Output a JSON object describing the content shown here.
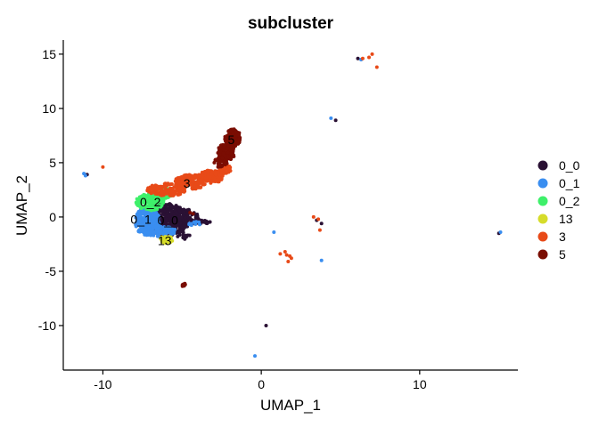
{
  "chart_data": {
    "type": "scatter",
    "title": "subcluster",
    "xlabel": "UMAP_1",
    "ylabel": "UMAP_2",
    "xlim": [
      -12.5,
      16.2
    ],
    "ylim": [
      -14.1,
      16.3
    ],
    "xticks": [
      -10,
      0,
      10
    ],
    "yticks": [
      -10,
      -5,
      0,
      5,
      10,
      15
    ],
    "grid": false,
    "legend_position": "right",
    "series": [
      {
        "name": "0_0",
        "color": "#2a1134",
        "label": "0_0",
        "label_pos": [
          -5.9,
          -0.4
        ],
        "blobs": [
          {
            "cx": -6.0,
            "cy": -0.2,
            "rx": 1.4,
            "ry": 1.5,
            "n": 420
          },
          {
            "cx": -4.8,
            "cy": -0.1,
            "rx": 0.9,
            "ry": 0.8,
            "n": 90
          },
          {
            "cx": -3.8,
            "cy": -0.5,
            "rx": 0.6,
            "ry": 0.2,
            "n": 25
          },
          {
            "cx": -5.0,
            "cy": -1.6,
            "rx": 0.5,
            "ry": 0.5,
            "n": 20
          }
        ],
        "points": [
          [
            4.7,
            8.9
          ],
          [
            6.1,
            14.6
          ],
          [
            3.8,
            -0.6
          ],
          [
            3.5,
            -0.3
          ],
          [
            0.3,
            -10.0
          ],
          [
            15.0,
            -1.5
          ],
          [
            -11.0,
            3.9
          ]
        ]
      },
      {
        "name": "0_1",
        "color": "#3a8ef0",
        "label": "0_1",
        "label_pos": [
          -7.6,
          -0.3
        ],
        "blobs": [
          {
            "cx": -7.2,
            "cy": -0.4,
            "rx": 0.8,
            "ry": 1.3,
            "n": 260
          },
          {
            "cx": -6.4,
            "cy": -1.3,
            "rx": 1.0,
            "ry": 0.5,
            "n": 90
          },
          {
            "cx": -4.2,
            "cy": -0.6,
            "rx": 0.4,
            "ry": 0.2,
            "n": 10
          }
        ],
        "points": [
          [
            4.4,
            9.1
          ],
          [
            -11.2,
            4.0
          ],
          [
            -11.1,
            3.8
          ],
          [
            0.8,
            -1.4
          ],
          [
            3.8,
            -4.0
          ],
          [
            -0.4,
            -12.8
          ],
          [
            15.1,
            -1.4
          ],
          [
            6.3,
            14.5
          ]
        ]
      },
      {
        "name": "0_2",
        "color": "#3ef06a",
        "label": "0_2",
        "label_pos": [
          -7.0,
          1.3
        ],
        "blobs": [
          {
            "cx": -7.0,
            "cy": 1.4,
            "rx": 0.9,
            "ry": 0.8,
            "n": 150
          },
          {
            "cx": -6.2,
            "cy": 2.2,
            "rx": 0.6,
            "ry": 0.5,
            "n": 50
          }
        ],
        "points": []
      },
      {
        "name": "13",
        "color": "#d6dc2a",
        "label": "13",
        "label_pos": [
          -6.1,
          -2.3
        ],
        "blobs": [
          {
            "cx": -6.0,
            "cy": -2.1,
            "rx": 0.4,
            "ry": 0.35,
            "n": 45
          }
        ],
        "points": []
      },
      {
        "name": "3",
        "color": "#e84a18",
        "label": "3",
        "label_pos": [
          -4.7,
          3.0
        ],
        "blobs": [
          {
            "cx": -6.0,
            "cy": 2.5,
            "rx": 1.2,
            "ry": 0.6,
            "n": 160
          },
          {
            "cx": -4.5,
            "cy": 3.2,
            "rx": 1.0,
            "ry": 0.7,
            "n": 160
          },
          {
            "cx": -3.2,
            "cy": 3.7,
            "rx": 0.8,
            "ry": 0.6,
            "n": 120
          },
          {
            "cx": -2.3,
            "cy": 4.4,
            "rx": 0.4,
            "ry": 0.4,
            "n": 40
          }
        ],
        "points": [
          [
            6.8,
            14.7
          ],
          [
            7.0,
            15.0
          ],
          [
            7.3,
            13.8
          ],
          [
            6.4,
            14.6
          ],
          [
            -10.0,
            4.6
          ],
          [
            3.3,
            0.0
          ],
          [
            3.6,
            -0.2
          ],
          [
            3.7,
            -1.2
          ],
          [
            1.2,
            -3.4
          ],
          [
            1.6,
            -3.5
          ],
          [
            1.8,
            -3.6
          ],
          [
            1.9,
            -3.8
          ],
          [
            1.7,
            -4.1
          ],
          [
            1.5,
            -3.2
          ]
        ]
      },
      {
        "name": "5",
        "color": "#7a0d02",
        "label": "5",
        "label_pos": [
          -1.9,
          7.0
        ],
        "blobs": [
          {
            "cx": -1.8,
            "cy": 7.3,
            "rx": 0.5,
            "ry": 0.8,
            "n": 120
          },
          {
            "cx": -2.2,
            "cy": 6.0,
            "rx": 0.55,
            "ry": 0.8,
            "n": 110
          },
          {
            "cx": -2.6,
            "cy": 5.0,
            "rx": 0.45,
            "ry": 0.45,
            "n": 40
          },
          {
            "cx": -4.9,
            "cy": -6.3,
            "rx": 0.12,
            "ry": 0.25,
            "n": 12
          }
        ],
        "points": [
          [
            -4.5,
            0.4
          ],
          [
            -4.3,
            0.3
          ]
        ]
      }
    ]
  }
}
